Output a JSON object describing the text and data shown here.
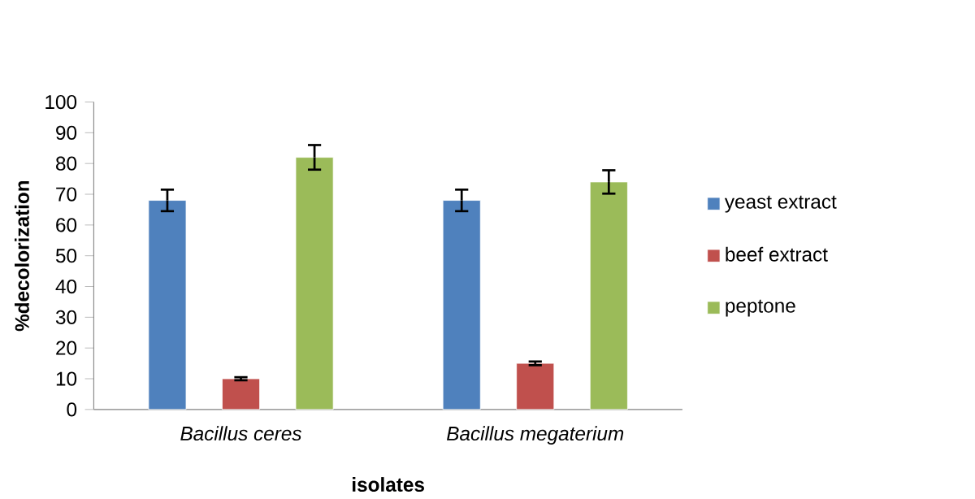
{
  "chart_data": {
    "type": "bar",
    "xlabel": "isolates",
    "ylabel": "%decolorization",
    "categories": [
      "Bacillus ceres",
      "Bacillus megaterium"
    ],
    "series": [
      {
        "name": "yeast extract",
        "color": "#4f81bd",
        "values": [
          68,
          68
        ],
        "errors": [
          3.5,
          3.5
        ]
      },
      {
        "name": "beef extract",
        "color": "#c0504d",
        "values": [
          10,
          15
        ],
        "errors": [
          0.5,
          0.6
        ]
      },
      {
        "name": "peptone",
        "color": "#9bbb59",
        "values": [
          82,
          74
        ],
        "errors": [
          4,
          3.8
        ]
      }
    ],
    "ylim": [
      0,
      100
    ],
    "yticks": [
      0,
      10,
      20,
      30,
      40,
      50,
      60,
      70,
      80,
      90,
      100
    ],
    "grid": false,
    "legend": "right"
  }
}
